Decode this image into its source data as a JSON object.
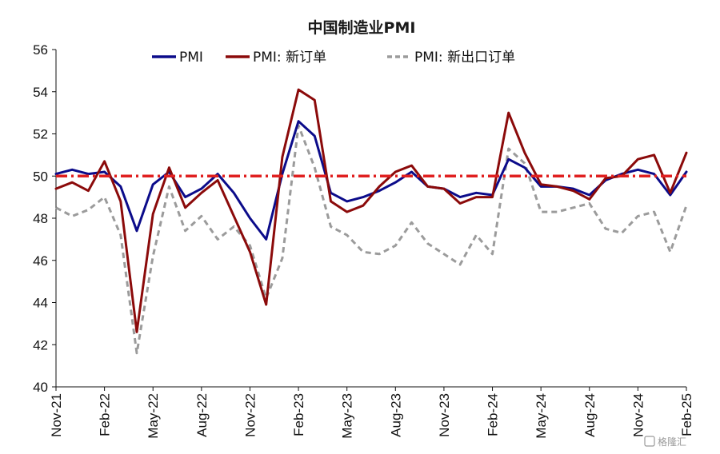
{
  "chart_data": {
    "type": "line",
    "title": "中国制造业PMI",
    "ylim": [
      40,
      56
    ],
    "yticks": [
      40,
      42,
      44,
      46,
      48,
      50,
      52,
      54,
      56
    ],
    "x_tick_labels": [
      "Nov-21",
      "Feb-22",
      "May-22",
      "Aug-22",
      "Nov-22",
      "Feb-23",
      "May-23",
      "Aug-23",
      "Nov-23",
      "Feb-24",
      "May-24",
      "Aug-24",
      "Nov-24",
      "Feb-25"
    ],
    "x": [
      "2021-11",
      "2021-12",
      "2022-01",
      "2022-02",
      "2022-03",
      "2022-04",
      "2022-05",
      "2022-06",
      "2022-07",
      "2022-08",
      "2022-09",
      "2022-10",
      "2022-11",
      "2022-12",
      "2023-01",
      "2023-02",
      "2023-03",
      "2023-04",
      "2023-05",
      "2023-06",
      "2023-07",
      "2023-08",
      "2023-09",
      "2023-10",
      "2023-11",
      "2023-12",
      "2024-01",
      "2024-02",
      "2024-03",
      "2024-04",
      "2024-05",
      "2024-06",
      "2024-07",
      "2024-08",
      "2024-09",
      "2024-10",
      "2024-11",
      "2024-12",
      "2025-01",
      "2025-02"
    ],
    "reference_line": {
      "value": 50,
      "color": "#e02020"
    },
    "legend_position": "top",
    "series": [
      {
        "name": "PMI",
        "color": "#0b0b8a",
        "style": "solid",
        "values": [
          50.1,
          50.3,
          50.1,
          50.2,
          49.5,
          47.4,
          49.6,
          50.2,
          49.0,
          49.4,
          50.1,
          49.2,
          48.0,
          47.0,
          50.1,
          52.6,
          51.9,
          49.2,
          48.8,
          49.0,
          49.3,
          49.7,
          50.2,
          49.5,
          49.4,
          49.0,
          49.2,
          49.1,
          50.8,
          50.4,
          49.5,
          49.5,
          49.4,
          49.1,
          49.8,
          50.1,
          50.3,
          50.1,
          49.1,
          50.2
        ]
      },
      {
        "name": "PMI: 新订单",
        "color": "#8b0a0a",
        "style": "solid",
        "values": [
          49.4,
          49.7,
          49.3,
          50.7,
          48.8,
          42.6,
          48.2,
          50.4,
          48.5,
          49.2,
          49.8,
          48.1,
          46.4,
          43.9,
          50.9,
          54.1,
          53.6,
          48.8,
          48.3,
          48.6,
          49.5,
          50.2,
          50.5,
          49.5,
          49.4,
          48.7,
          49.0,
          49.0,
          53.0,
          51.1,
          49.6,
          49.5,
          49.3,
          48.9,
          49.9,
          50.0,
          50.8,
          51.0,
          49.2,
          51.1
        ]
      },
      {
        "name": "PMI: 新出口订单",
        "color": "#9b9b9b",
        "style": "dashed",
        "values": [
          48.5,
          48.1,
          48.4,
          49.0,
          47.2,
          41.6,
          46.2,
          49.5,
          47.4,
          48.1,
          47.0,
          47.6,
          46.7,
          44.2,
          46.1,
          52.4,
          50.4,
          47.6,
          47.2,
          46.4,
          46.3,
          46.7,
          47.8,
          46.8,
          46.3,
          45.8,
          47.2,
          46.3,
          51.3,
          50.6,
          48.3,
          48.3,
          48.5,
          48.7,
          47.5,
          47.3,
          48.1,
          48.3,
          46.4,
          48.6
        ]
      }
    ]
  },
  "watermark": "格隆汇"
}
